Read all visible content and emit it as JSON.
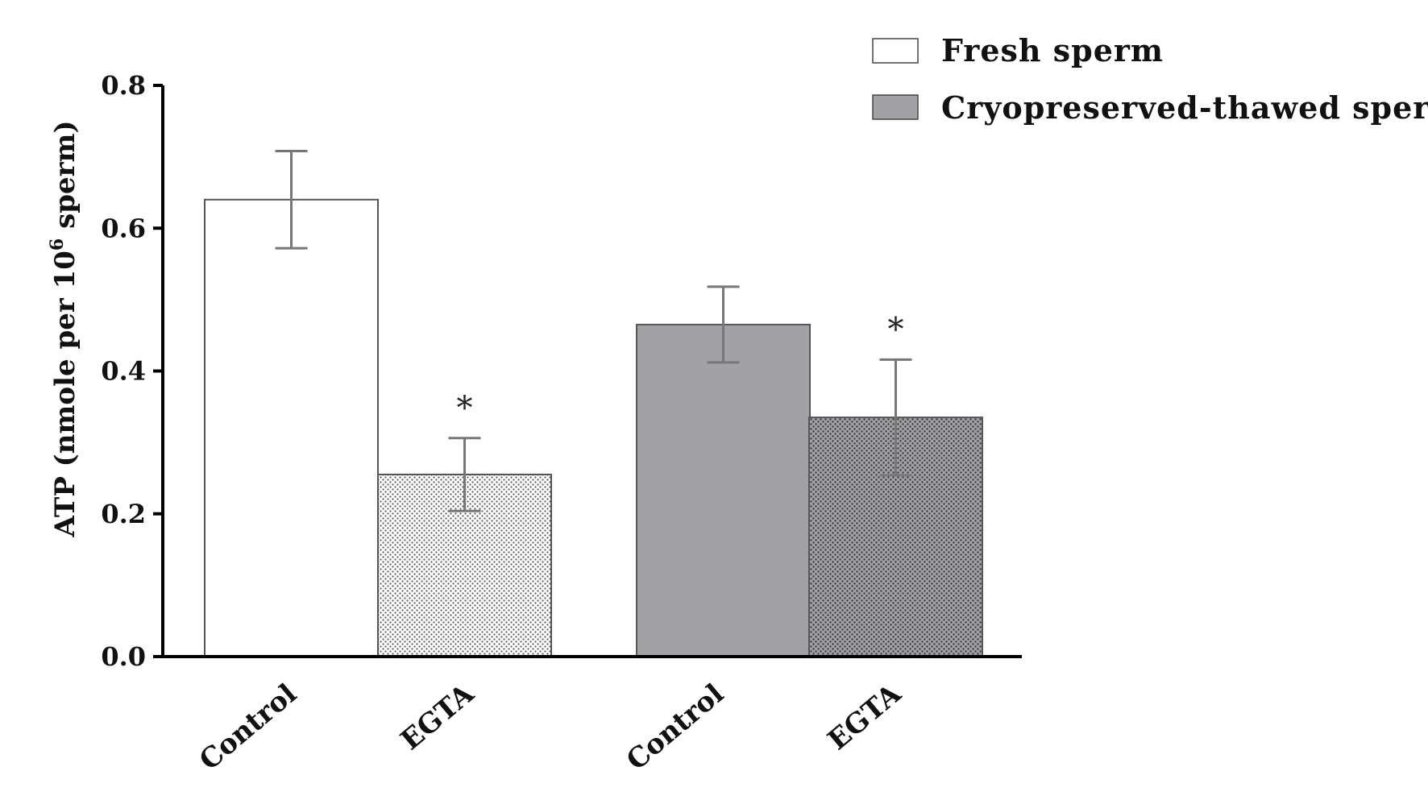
{
  "chart_data": {
    "type": "bar",
    "ylabel_main": "ATP (nmole per 10",
    "ylabel_sup": "6",
    "ylabel_tail": " sperm)",
    "ylim": [
      0,
      0.8
    ],
    "yticks": [
      "0.0",
      "0.2",
      "0.4",
      "0.6",
      "0.8"
    ],
    "categories": [
      "Control",
      "EGTA",
      "Control",
      "EGTA"
    ],
    "legend": [
      {
        "label": "Fresh sperm",
        "color": "#ffffff"
      },
      {
        "label": "Cryopreserved-thawed sperm",
        "color": "#a2a1a6"
      }
    ],
    "legend_position": "top-right",
    "bars": [
      {
        "category": "Control",
        "group": "Fresh sperm",
        "value": 0.64,
        "err": 0.068,
        "significant": false,
        "fill": "#ffffff",
        "pattern": "none"
      },
      {
        "category": "EGTA",
        "group": "Fresh sperm",
        "value": 0.255,
        "err": 0.051,
        "significant": true,
        "fill": "#ffffff",
        "pattern": "dots-light"
      },
      {
        "category": "Control",
        "group": "Cryopreserved-thawed sperm",
        "value": 0.465,
        "err": 0.053,
        "significant": false,
        "fill": "#a2a1a6",
        "pattern": "none"
      },
      {
        "category": "EGTA",
        "group": "Cryopreserved-thawed sperm",
        "value": 0.335,
        "err": 0.081,
        "significant": true,
        "fill": "#a2a1a6",
        "pattern": "dots-dark"
      }
    ],
    "significance_marker": "*",
    "grid": false
  }
}
